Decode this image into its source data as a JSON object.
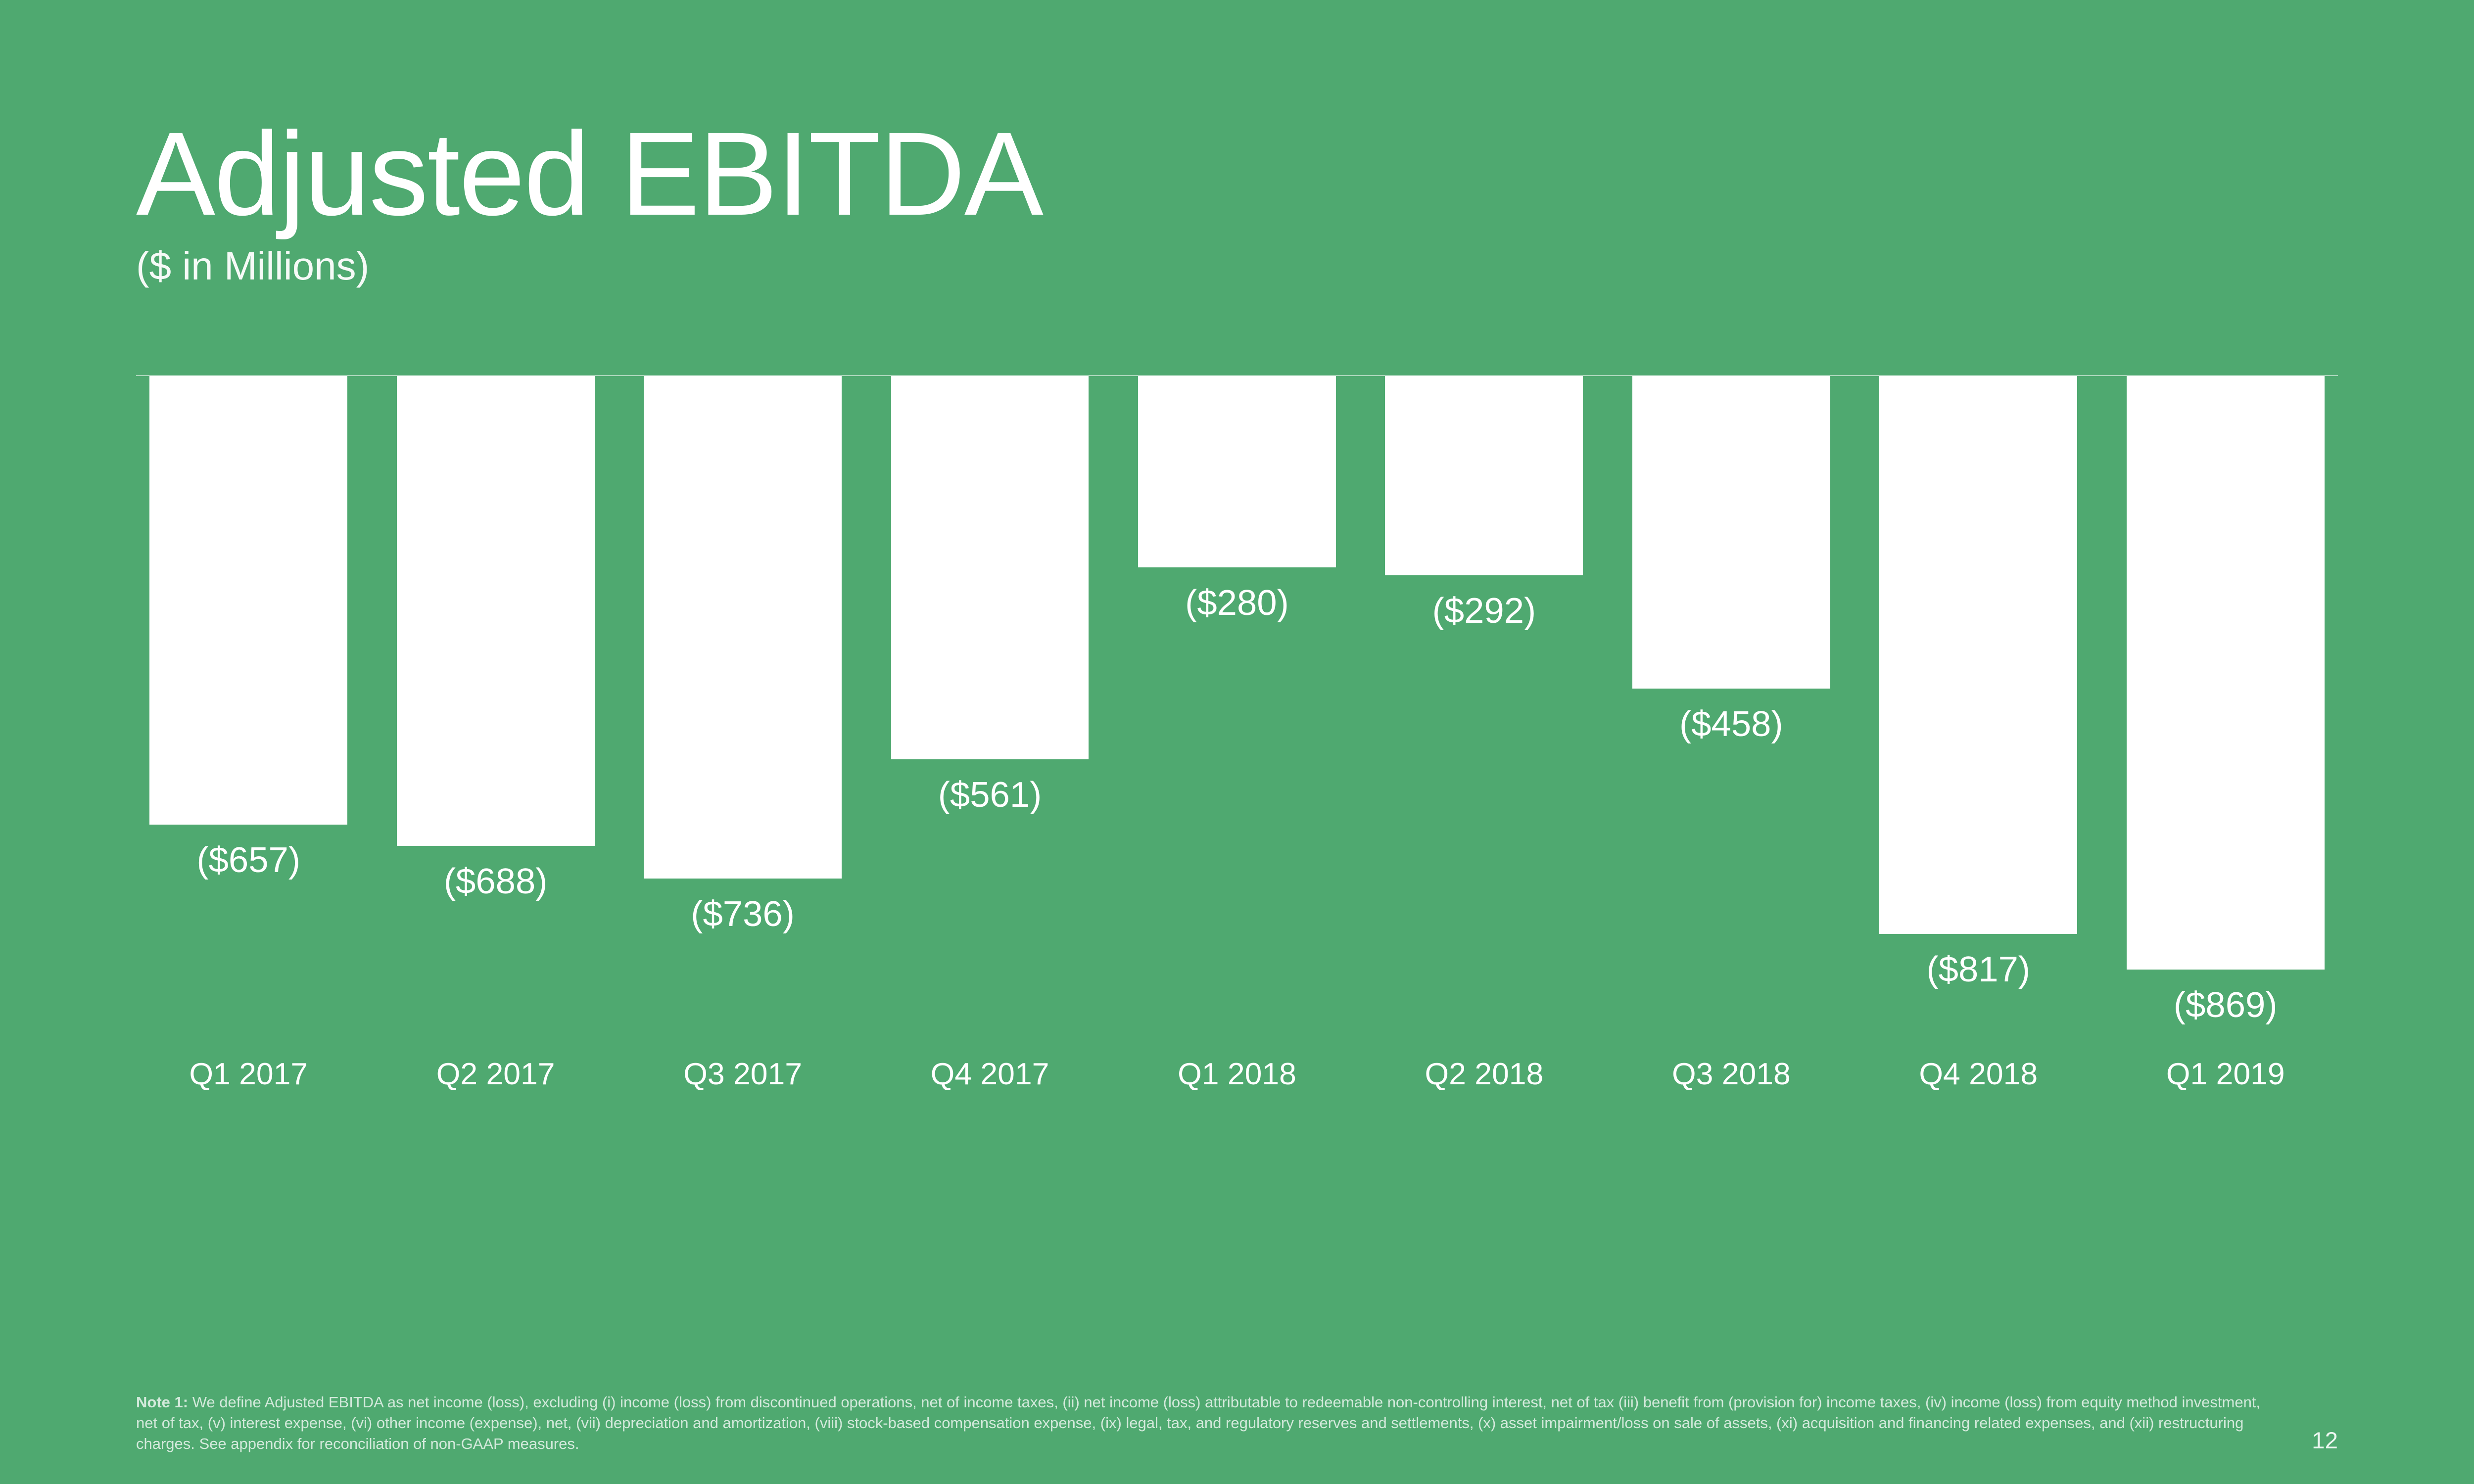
{
  "title": "Adjusted EBITDA",
  "subtitle": "($ in Millions)",
  "chart": {
    "type": "bar",
    "direction": "downward",
    "baseline_color": "#ffffff",
    "bar_color": "#ffffff",
    "background_color": "#4fa970",
    "text_color": "#ffffff",
    "max_abs_value": 869,
    "bar_area_height_vw": 24,
    "categories": [
      "Q1 2017",
      "Q2 2017",
      "Q3 2017",
      "Q4 2017",
      "Q1 2018",
      "Q2 2018",
      "Q3 2018",
      "Q4 2018",
      "Q1 2019"
    ],
    "values": [
      -657,
      -688,
      -736,
      -561,
      -280,
      -292,
      -458,
      -817,
      -869
    ],
    "value_labels": [
      "($657)",
      "($688)",
      "($736)",
      "($561)",
      "($280)",
      "($292)",
      "($458)",
      "($817)",
      "($869)"
    ],
    "title_fontsize_vw": 4.8,
    "subtitle_fontsize_vw": 1.6,
    "value_label_fontsize_vw": 1.45,
    "category_fontsize_vw": 1.25
  },
  "footnote_label": "Note 1:",
  "footnote_text": "We define Adjusted EBITDA as net income (loss), excluding (i) income (loss) from discontinued operations, net of income taxes, (ii) net income (loss) attributable to redeemable non-controlling interest, net of tax (iii) benefit from (provision for) income taxes, (iv) income (loss) from equity method investment, net of tax, (v) interest expense, (vi) other income (expense), net, (vii) depreciation and amortization, (viii) stock-based compensation expense, (ix) legal, tax, and regulatory reserves and settlements, (x) asset impairment/loss on sale of assets, (xi) acquisition and financing related expenses, and (xii) restructuring charges. See appendix for reconciliation of non-GAAP measures.",
  "page_number": "12"
}
